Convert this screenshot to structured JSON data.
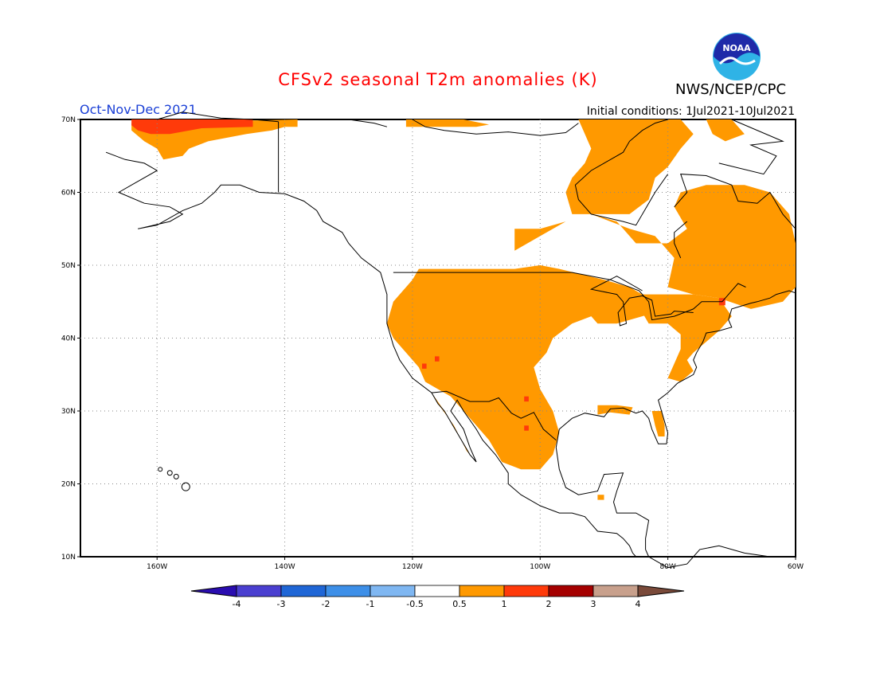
{
  "title": "CFSv2 seasonal T2m anomalies (K)",
  "agency": "NWS/NCEP/CPC",
  "logo_text": "NOAA",
  "period": "Oct-Nov-Dec 2021",
  "initial_conditions": "Initial conditions: 1Jul2021-10Jul2021",
  "map": {
    "projection": "lat-lon",
    "lon_range": [
      -172,
      -60
    ],
    "lat_range": [
      10,
      70
    ],
    "lat_ticks": [
      {
        "value": 70,
        "label": "70N"
      },
      {
        "value": 60,
        "label": "60N"
      },
      {
        "value": 50,
        "label": "50N"
      },
      {
        "value": 40,
        "label": "40N"
      },
      {
        "value": 30,
        "label": "30N"
      },
      {
        "value": 20,
        "label": "20N"
      },
      {
        "value": 10,
        "label": "10N"
      }
    ],
    "lon_ticks": [
      {
        "value": -160,
        "label": "160W"
      },
      {
        "value": -140,
        "label": "140W"
      },
      {
        "value": -120,
        "label": "120W"
      },
      {
        "value": -100,
        "label": "100W"
      },
      {
        "value": -80,
        "label": "80W"
      },
      {
        "value": -60,
        "label": "60W"
      }
    ],
    "grid": "dotted"
  },
  "colorbar": {
    "labels": [
      "-4",
      "-3",
      "-2",
      "-1",
      "-0.5",
      "0.5",
      "1",
      "2",
      "3",
      "4"
    ],
    "colors": [
      "#2a0db0",
      "#4a3fd0",
      "#1f66d6",
      "#3d8fe8",
      "#7fb7f2",
      "#ffffff",
      "#ff9900",
      "#ff3a0a",
      "#a50000",
      "#c8a08c",
      "#7a4a3a"
    ]
  },
  "anomaly_colors": {
    "land_outline": "#000000",
    "weak_warm": "#ff9900",
    "strong_warm": "#ff3a0a"
  }
}
